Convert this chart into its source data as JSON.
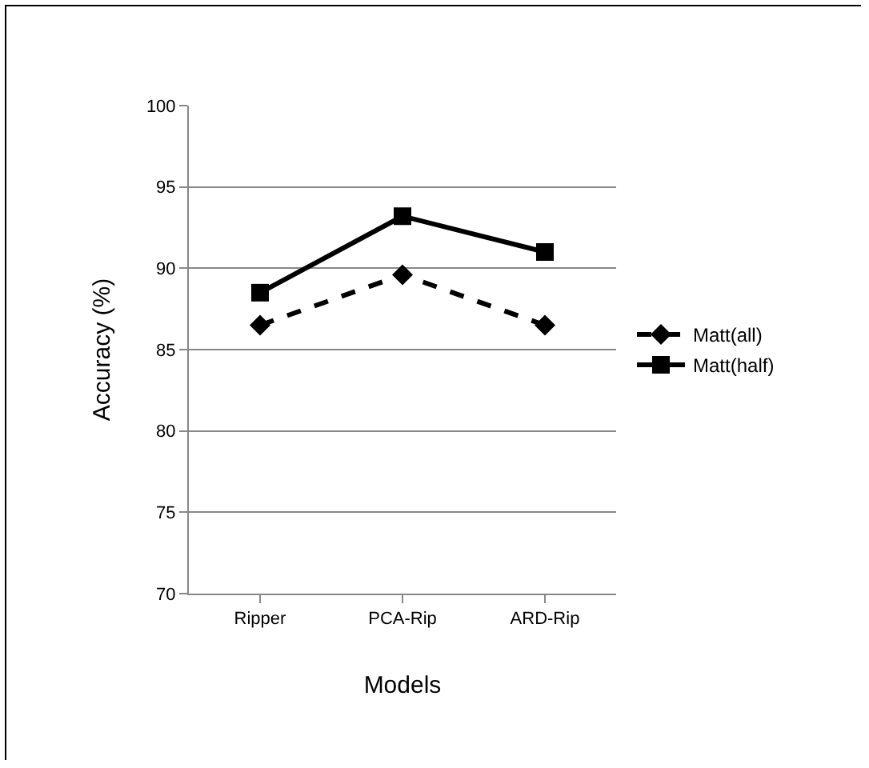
{
  "chart_data": {
    "type": "line",
    "xlabel": "Models",
    "ylabel": "Accuracy (%)",
    "categories": [
      "Ripper",
      "PCA-Rip",
      "ARD-Rip"
    ],
    "series": [
      {
        "name": "Matt(all)",
        "color": "#000000",
        "values": [
          86.5,
          89.6,
          86.5
        ],
        "marker": "diamond",
        "line_style": "dashed"
      },
      {
        "name": "Matt(half)",
        "color": "#000000",
        "values": [
          88.5,
          93.2,
          91.0
        ],
        "marker": "square",
        "line_style": "solid"
      }
    ],
    "ylim": [
      70,
      100
    ],
    "yticks": [
      70,
      75,
      80,
      85,
      90,
      95,
      100
    ],
    "grid": "y",
    "legend": "right"
  }
}
